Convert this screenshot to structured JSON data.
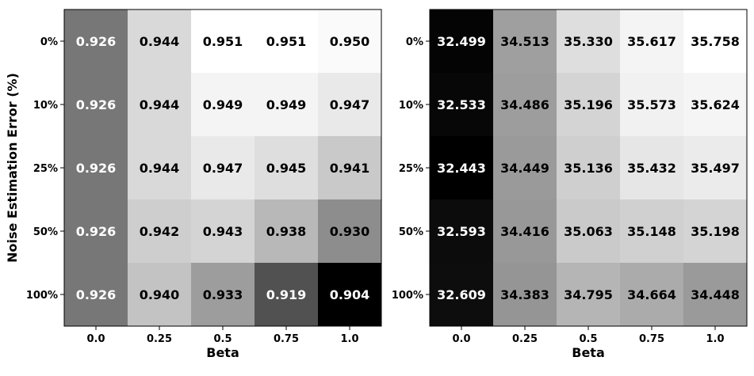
{
  "chart_data": [
    {
      "type": "heatmap",
      "title": "",
      "xlabel": "Beta",
      "ylabel": "Noise Estimation Error (%)",
      "x_ticks": [
        "0.0",
        "0.25",
        "0.5",
        "0.75",
        "1.0"
      ],
      "y_ticks": [
        "0%",
        "10%",
        "25%",
        "50%",
        "100%"
      ],
      "colormap": "gray",
      "value_range": [
        0.904,
        0.951
      ],
      "values": [
        [
          "0.926",
          "0.944",
          "0.951",
          "0.951",
          "0.950"
        ],
        [
          "0.926",
          "0.944",
          "0.949",
          "0.949",
          "0.947"
        ],
        [
          "0.926",
          "0.944",
          "0.947",
          "0.945",
          "0.941"
        ],
        [
          "0.926",
          "0.942",
          "0.943",
          "0.938",
          "0.930"
        ],
        [
          "0.926",
          "0.940",
          "0.933",
          "0.919",
          "0.904"
        ]
      ]
    },
    {
      "type": "heatmap",
      "title": "",
      "xlabel": "Beta",
      "ylabel": "",
      "x_ticks": [
        "0.0",
        "0.25",
        "0.5",
        "0.75",
        "1.0"
      ],
      "y_ticks": [
        "0%",
        "10%",
        "25%",
        "50%",
        "100%"
      ],
      "colormap": "gray",
      "value_range": [
        32.443,
        35.758
      ],
      "values": [
        [
          "32.499",
          "34.513",
          "35.330",
          "35.617",
          "35.758"
        ],
        [
          "32.533",
          "34.486",
          "35.196",
          "35.573",
          "35.624"
        ],
        [
          "32.443",
          "34.449",
          "35.136",
          "35.432",
          "35.497"
        ],
        [
          "32.593",
          "34.416",
          "35.063",
          "35.148",
          "35.198"
        ],
        [
          "32.609",
          "34.383",
          "34.795",
          "34.664",
          "34.448"
        ]
      ]
    }
  ]
}
